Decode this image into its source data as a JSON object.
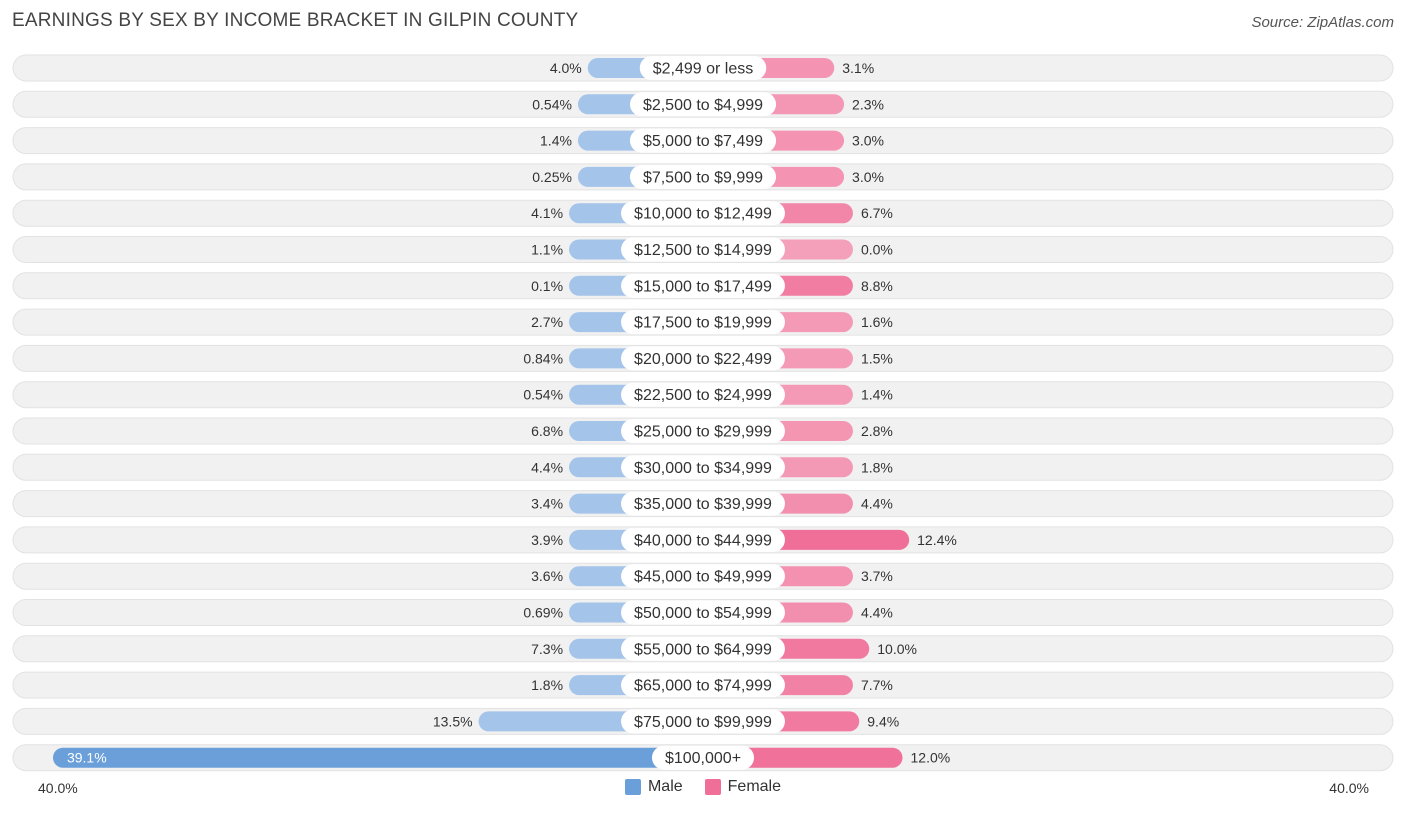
{
  "title": "EARNINGS BY SEX BY INCOME BRACKET IN GILPIN COUNTY",
  "source": "Source: ZipAtlas.com",
  "colors": {
    "male": "#a4c4e9",
    "male_strong": "#6a9fd9",
    "female": "#f5a0ba",
    "female_strong": "#f06f98",
    "row_bg": "#f1f1f1"
  },
  "chart_data": {
    "type": "bar",
    "orientation": "horizontal-diverging",
    "title": "EARNINGS BY SEX BY INCOME BRACKET IN GILPIN COUNTY",
    "categories": [
      "$2,499 or less",
      "$2,500 to $4,999",
      "$5,000 to $7,499",
      "$7,500 to $9,999",
      "$10,000 to $12,499",
      "$12,500 to $14,999",
      "$15,000 to $17,499",
      "$17,500 to $19,999",
      "$20,000 to $22,499",
      "$22,500 to $24,999",
      "$25,000 to $29,999",
      "$30,000 to $34,999",
      "$35,000 to $39,999",
      "$40,000 to $44,999",
      "$45,000 to $49,999",
      "$50,000 to $54,999",
      "$55,000 to $64,999",
      "$65,000 to $74,999",
      "$75,000 to $99,999",
      "$100,000+"
    ],
    "series": [
      {
        "name": "Male",
        "values": [
          4.0,
          0.54,
          1.4,
          0.25,
          4.1,
          1.1,
          0.1,
          2.7,
          0.84,
          0.54,
          6.8,
          4.4,
          3.4,
          3.9,
          3.6,
          0.69,
          7.3,
          1.8,
          13.5,
          39.1
        ],
        "labels": [
          "4.0%",
          "0.54%",
          "1.4%",
          "0.25%",
          "4.1%",
          "1.1%",
          "0.1%",
          "2.7%",
          "0.84%",
          "0.54%",
          "6.8%",
          "4.4%",
          "3.4%",
          "3.9%",
          "3.6%",
          "0.69%",
          "7.3%",
          "1.8%",
          "13.5%",
          "39.1%"
        ]
      },
      {
        "name": "Female",
        "values": [
          3.1,
          2.3,
          3.0,
          3.0,
          6.7,
          0.0,
          8.8,
          1.6,
          1.5,
          1.4,
          2.8,
          1.8,
          4.4,
          12.4,
          3.7,
          4.4,
          10.0,
          7.7,
          9.4,
          12.0
        ],
        "labels": [
          "3.1%",
          "2.3%",
          "3.0%",
          "3.0%",
          "6.7%",
          "0.0%",
          "8.8%",
          "1.6%",
          "1.5%",
          "1.4%",
          "2.8%",
          "1.8%",
          "4.4%",
          "12.4%",
          "3.7%",
          "4.4%",
          "10.0%",
          "7.7%",
          "9.4%",
          "12.0%"
        ]
      }
    ],
    "axis": {
      "min": 0,
      "max": 40.0,
      "left_label": "40.0%",
      "right_label": "40.0%"
    },
    "legend": [
      "Male",
      "Female"
    ],
    "legend_position": "bottom-center"
  }
}
